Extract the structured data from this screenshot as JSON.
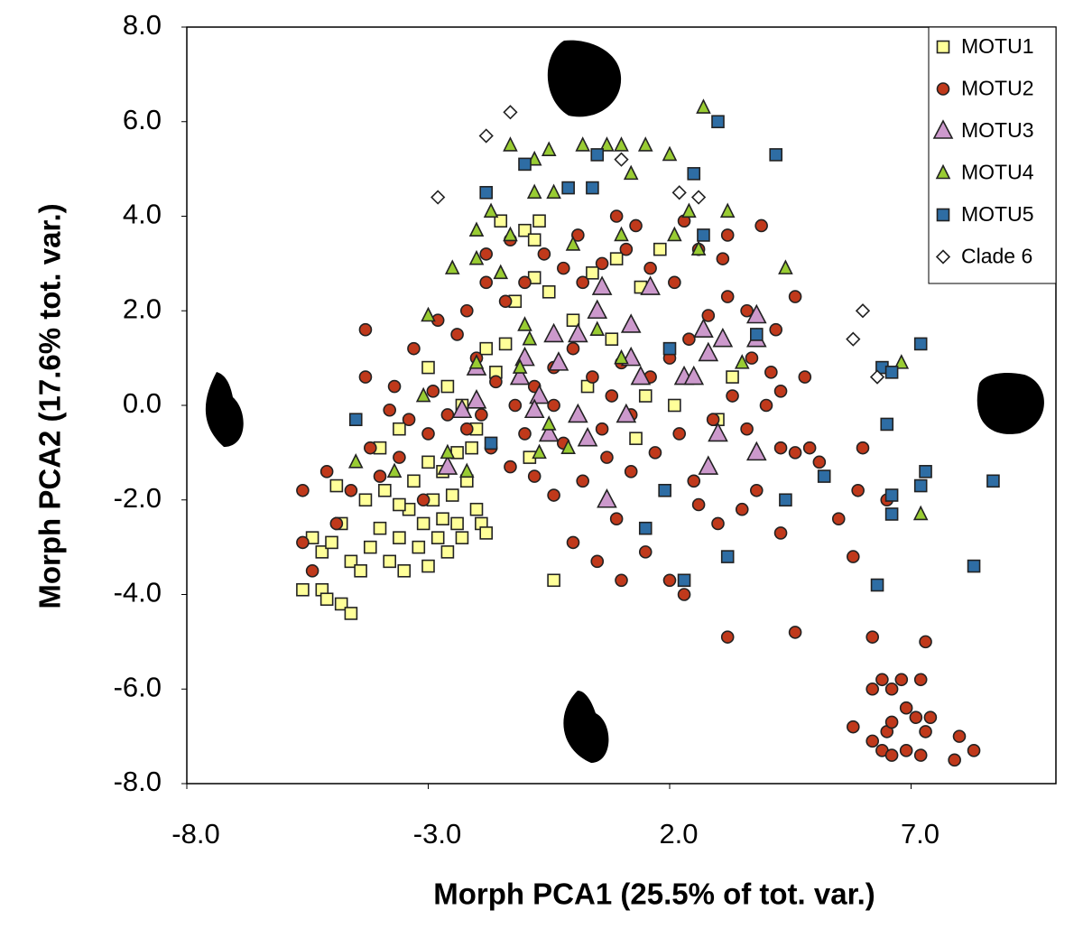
{
  "chart_data": {
    "type": "scatter",
    "xlabel": "Morph PCA1 (25.5% of tot. var.)",
    "ylabel": "Morph PCA2 (17.6% tot. var.)",
    "xlim": [
      -8,
      10
    ],
    "ylim": [
      -8,
      8
    ],
    "xticks": [
      {
        "value": -8,
        "label": "-8.0"
      },
      {
        "value": -3,
        "label": "-3.0"
      },
      {
        "value": 2,
        "label": "2.0"
      },
      {
        "value": 7,
        "label": "7.0"
      }
    ],
    "yticks": [
      {
        "value": 8,
        "label": "8.0"
      },
      {
        "value": 6,
        "label": "6.0"
      },
      {
        "value": 4,
        "label": "4.0"
      },
      {
        "value": 2,
        "label": "2.0"
      },
      {
        "value": 0,
        "label": "0.0"
      },
      {
        "value": -2,
        "label": "-2.0"
      },
      {
        "value": -4,
        "label": "-4.0"
      },
      {
        "value": -6,
        "label": "-6.0"
      },
      {
        "value": -8,
        "label": "-8.0"
      }
    ],
    "grid": false,
    "legend": "upper right",
    "series": [
      {
        "name": "MOTU1",
        "color": "#ffff99",
        "marker": "square",
        "x": [
          -5.6,
          -5.2,
          -5.1,
          -4.8,
          -4.6,
          -5.4,
          -5.2,
          -5.0,
          -4.8,
          -4.6,
          -4.4,
          -4.2,
          -4.0,
          -3.8,
          -3.6,
          -3.5,
          -3.4,
          -3.2,
          -3.1,
          -3.0,
          -2.9,
          -2.8,
          -2.7,
          -2.6,
          -2.5,
          -2.4,
          -2.3,
          -2.2,
          -2.0,
          -1.9,
          -1.8,
          -4.9,
          -4.3,
          -3.9,
          -3.6,
          -3.3,
          -3.0,
          -2.7,
          -2.4,
          -2.1,
          -4.0,
          -3.6,
          -3.0,
          -2.6,
          -2.3,
          -1.8,
          -1.6,
          -1.4,
          -1.2,
          -0.8,
          -0.5,
          -1.5,
          -1.0,
          -0.7,
          -0.8,
          0.4,
          0.9,
          1.4,
          1.8,
          0.0,
          0.8,
          1.3,
          2.1,
          3.0,
          3.3,
          -0.4,
          -0.9,
          -2.0,
          0.3,
          1.5
        ],
        "y": [
          -3.9,
          -3.9,
          -4.1,
          -4.2,
          -4.4,
          -2.8,
          -3.1,
          -2.9,
          -2.5,
          -3.3,
          -3.5,
          -3.0,
          -2.6,
          -3.3,
          -2.8,
          -3.5,
          -2.2,
          -3.0,
          -2.5,
          -3.4,
          -2.0,
          -2.8,
          -2.4,
          -3.1,
          -1.9,
          -2.5,
          -2.8,
          -1.6,
          -2.2,
          -2.5,
          -2.7,
          -1.7,
          -2.0,
          -1.8,
          -2.1,
          -1.6,
          -1.2,
          -1.4,
          -1.0,
          -0.9,
          -0.9,
          -0.5,
          0.8,
          0.4,
          0.0,
          1.2,
          0.7,
          1.3,
          2.2,
          2.7,
          2.4,
          3.9,
          3.7,
          3.9,
          3.5,
          2.8,
          3.1,
          2.5,
          3.3,
          1.8,
          1.4,
          -0.7,
          0.0,
          -0.3,
          0.6,
          -3.7,
          -1.1,
          -0.5,
          0.4,
          0.2
        ]
      },
      {
        "name": "MOTU2",
        "color": "#c0391b",
        "marker": "circle",
        "x": [
          6.2,
          6.4,
          6.6,
          6.8,
          7.2,
          7.3,
          5.8,
          6.2,
          6.4,
          6.5,
          6.6,
          6.9,
          7.1,
          7.4,
          7.3,
          6.9,
          7.2,
          6.6,
          8.0,
          8.3,
          7.9,
          6.5,
          6.2,
          5.8,
          5.5,
          5.1,
          4.9,
          4.6,
          4.3,
          6.0,
          5.9,
          4.3,
          4.6,
          3.2,
          2.3,
          2.0,
          1.0,
          0.5,
          0.0,
          1.5,
          3.0,
          3.5,
          2.5,
          3.6,
          4.0,
          4.1,
          4.8,
          4.3,
          4.6,
          4.2,
          3.7,
          3.3,
          2.9,
          2.2,
          1.7,
          1.2,
          0.7,
          0.2,
          -0.4,
          -0.8,
          -1.3,
          -1.7,
          -2.2,
          -2.6,
          -3.0,
          -3.4,
          -3.8,
          -4.2,
          -4.6,
          -5.1,
          -5.6,
          -5.6,
          -5.4,
          -4.9,
          -4.3,
          -4.3,
          -3.7,
          -3.3,
          -2.8,
          -2.4,
          -2.0,
          -1.6,
          -1.2,
          -0.8,
          -0.4,
          0.0,
          0.4,
          0.8,
          1.2,
          1.6,
          2.0,
          2.4,
          2.8,
          3.2,
          3.6,
          3.9,
          3.2,
          3.1,
          2.6,
          2.1,
          1.6,
          1.1,
          0.6,
          0.2,
          -0.2,
          -0.6,
          -1.0,
          -1.4,
          -1.8,
          -2.2,
          -0.4,
          0.6,
          1.0,
          -0.2,
          -1.0,
          -1.9,
          -2.9,
          0.9,
          1.3,
          2.3,
          -1.3,
          0.1,
          -1.8,
          -4.0,
          -3.6,
          -3.1,
          3.8,
          2.6,
          0.9
        ],
        "y": [
          -6.0,
          -5.8,
          -6.0,
          -5.8,
          -5.8,
          -5.0,
          -6.8,
          -7.1,
          -7.3,
          -6.9,
          -6.7,
          -6.4,
          -6.6,
          -6.6,
          -6.9,
          -7.3,
          -7.4,
          -7.4,
          -7.0,
          -7.3,
          -7.5,
          -2.0,
          -4.9,
          -3.2,
          -2.4,
          -1.2,
          -0.9,
          -1.0,
          -0.9,
          -0.9,
          -1.8,
          -2.7,
          -4.8,
          -4.9,
          -4.0,
          -3.7,
          -3.7,
          -3.3,
          -2.9,
          -3.1,
          -2.5,
          -2.2,
          -1.6,
          -0.5,
          0.0,
          0.7,
          0.6,
          0.3,
          2.3,
          1.6,
          1.0,
          0.2,
          -0.3,
          -0.6,
          -1.0,
          -1.4,
          -1.1,
          -1.6,
          -1.9,
          -1.5,
          -1.3,
          -0.9,
          -0.5,
          -0.2,
          -0.6,
          -0.3,
          -0.1,
          -0.9,
          -1.8,
          -1.4,
          -1.8,
          -2.9,
          -3.5,
          -2.5,
          0.6,
          1.6,
          0.4,
          1.2,
          1.8,
          1.5,
          1.0,
          0.5,
          0.0,
          0.4,
          0.8,
          1.2,
          0.6,
          0.2,
          -0.2,
          0.6,
          1.0,
          1.4,
          1.9,
          2.3,
          2.0,
          3.8,
          3.6,
          3.1,
          3.3,
          2.6,
          2.9,
          3.3,
          3.0,
          2.6,
          2.9,
          3.2,
          2.6,
          2.2,
          2.6,
          2.0,
          0.0,
          -0.5,
          0.9,
          -0.8,
          -0.6,
          -0.2,
          0.3,
          4.0,
          3.8,
          3.9,
          3.5,
          3.6,
          3.2,
          -1.5,
          -1.1,
          -2.0,
          -1.8,
          -2.1,
          -2.4
        ]
      },
      {
        "name": "MOTU3",
        "color": "#cc99cc",
        "marker": "triangle-large",
        "x": [
          0.7,
          -0.5,
          0.3,
          3.8,
          3.0,
          2.8,
          1.1,
          1.4,
          2.3,
          2.5,
          1.2,
          2.8,
          3.8,
          3.8,
          2.7,
          3.1,
          0.5,
          0.1,
          -0.4,
          0.6,
          1.6,
          -1.0,
          -1.1,
          -0.7,
          -0.8,
          -2.0,
          -2.3,
          -2.6,
          -2.0,
          -0.3,
          0.1,
          1.2
        ],
        "y": [
          -2.0,
          -0.6,
          -0.7,
          -1.0,
          -0.6,
          -1.3,
          -0.2,
          0.6,
          0.6,
          0.6,
          1.0,
          1.1,
          1.4,
          1.9,
          1.6,
          1.4,
          2.0,
          1.5,
          1.5,
          2.5,
          2.5,
          1.0,
          0.6,
          0.2,
          -0.1,
          0.8,
          -0.1,
          -1.3,
          0.1,
          0.9,
          -0.2,
          1.7
        ]
      },
      {
        "name": "MOTU4",
        "color": "#99cc33",
        "marker": "triangle",
        "x": [
          2.7,
          -1.3,
          -0.5,
          0.2,
          0.7,
          1.0,
          1.5,
          2.0,
          -0.8,
          1.2,
          -0.8,
          -0.4,
          2.4,
          3.2,
          -1.7,
          -2.0,
          -1.3,
          0.0,
          1.0,
          2.1,
          2.6,
          -2.0,
          -2.5,
          4.4,
          -1.5,
          -3.0,
          -1.0,
          -0.9,
          3.5,
          -1.1,
          1.0,
          -2.0,
          -3.1,
          -4.5,
          -3.7,
          -2.6,
          -2.2,
          -0.7,
          -0.1,
          -0.5,
          6.8,
          7.2,
          0.5
        ],
        "y": [
          6.3,
          5.5,
          5.4,
          5.5,
          5.5,
          5.5,
          5.5,
          5.3,
          5.2,
          4.9,
          4.5,
          4.5,
          4.1,
          4.1,
          4.1,
          3.7,
          3.6,
          3.4,
          3.6,
          3.6,
          3.3,
          3.1,
          2.9,
          2.9,
          2.8,
          1.9,
          1.7,
          1.4,
          0.9,
          0.8,
          1.0,
          0.9,
          0.2,
          -1.2,
          -1.4,
          -1.0,
          -1.4,
          -1.0,
          -0.9,
          -0.4,
          0.9,
          -2.3,
          1.6
        ]
      },
      {
        "name": "MOTU5",
        "color": "#2e6da4",
        "marker": "square",
        "x": [
          3.0,
          2.5,
          4.2,
          -0.1,
          0.4,
          -1.8,
          -1.0,
          0.5,
          2.7,
          2.0,
          3.8,
          6.4,
          6.6,
          7.2,
          6.5,
          -4.5,
          6.6,
          6.6,
          7.3,
          7.2,
          8.7,
          8.3,
          6.3,
          4.4,
          5.2,
          1.9,
          1.5,
          3.2,
          2.3,
          -1.7
        ],
        "y": [
          6.0,
          4.9,
          5.3,
          4.6,
          4.6,
          4.5,
          5.1,
          5.3,
          3.6,
          1.2,
          1.5,
          0.8,
          0.7,
          1.3,
          -0.4,
          -0.3,
          -1.9,
          -2.3,
          -1.4,
          -1.7,
          -1.6,
          -3.4,
          -3.8,
          -2.0,
          -1.5,
          -1.8,
          -2.6,
          -3.2,
          -3.7,
          -0.8
        ]
      },
      {
        "name": "Clade 6",
        "color": "#ffffff",
        "marker": "diamond",
        "x": [
          -2.8,
          -1.8,
          -1.3,
          1.0,
          2.2,
          2.6,
          6.0,
          5.8,
          6.3
        ],
        "y": [
          4.4,
          5.7,
          6.2,
          5.2,
          4.5,
          4.4,
          2.0,
          1.4,
          0.6
        ]
      }
    ]
  }
}
